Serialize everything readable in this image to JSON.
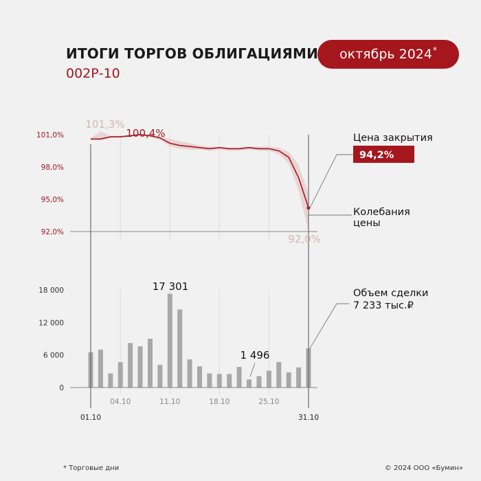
{
  "header": {
    "title": "ИТОГИ ТОРГОВ ОБЛИГАЦИЯМИ",
    "subtitle": "002Р-10",
    "period": "октябрь 2024",
    "period_mark": "*"
  },
  "footer": {
    "note": "* Торговые дни",
    "copyright": "© 2024 ООО «Бумин»"
  },
  "colors": {
    "accent": "#a5161d",
    "band": "#e8cfd0",
    "bars": "#a8a8a8",
    "grid": "#dcdcdc"
  },
  "chart_data": [
    {
      "type": "line",
      "name": "price",
      "x_ticks": [
        "01.10",
        "04.10",
        "11.10",
        "18.10",
        "25.10",
        "31.10"
      ],
      "y_ticks": [
        "101,0%",
        "98,0%",
        "95,0%",
        "92,0%"
      ],
      "ylim": [
        92.0,
        101.0
      ],
      "close": [
        100.6,
        100.6,
        100.8,
        100.8,
        100.9,
        101.0,
        100.9,
        100.7,
        100.2,
        100.0,
        99.9,
        99.8,
        99.7,
        99.8,
        99.7,
        99.7,
        99.8,
        99.7,
        99.7,
        99.5,
        98.9,
        97.0,
        94.2
      ],
      "high": [
        100.7,
        101.3,
        100.9,
        100.9,
        101.0,
        101.1,
        101.0,
        100.9,
        100.6,
        100.4,
        100.2,
        100.0,
        99.9,
        99.9,
        99.8,
        99.8,
        99.9,
        99.9,
        99.9,
        99.8,
        99.4,
        98.2,
        95.5
      ],
      "low": [
        100.5,
        100.5,
        100.7,
        100.7,
        100.8,
        100.9,
        100.8,
        100.5,
        99.9,
        99.7,
        99.6,
        99.6,
        99.5,
        99.6,
        99.5,
        99.5,
        99.6,
        99.5,
        99.5,
        99.2,
        98.3,
        95.8,
        92.0
      ],
      "annotations": {
        "max": "101,3%",
        "first_peak": "100,4%",
        "min": "92,0%"
      },
      "legend": {
        "close_label": "Цена закрытия",
        "close_value": "94,2%",
        "range_label_1": "Колебания",
        "range_label_2": "цены"
      }
    },
    {
      "type": "bar",
      "name": "volume",
      "x_ticks": [
        "04.10",
        "11.10",
        "18.10",
        "25.10"
      ],
      "y_ticks": [
        "18 000",
        "12 000",
        "6 000",
        "0"
      ],
      "ylim": [
        0,
        18000
      ],
      "values": [
        6500,
        7000,
        2600,
        4700,
        8200,
        7600,
        9000,
        4200,
        17301,
        14400,
        5200,
        3900,
        2600,
        2500,
        2500,
        3800,
        1496,
        2100,
        3100,
        4700,
        2800,
        3700,
        7233
      ],
      "annotations": {
        "max": "17 301",
        "min": "1 496"
      },
      "legend": {
        "label": "Объем сделки",
        "value": "7 233 тыс.₽"
      }
    }
  ]
}
